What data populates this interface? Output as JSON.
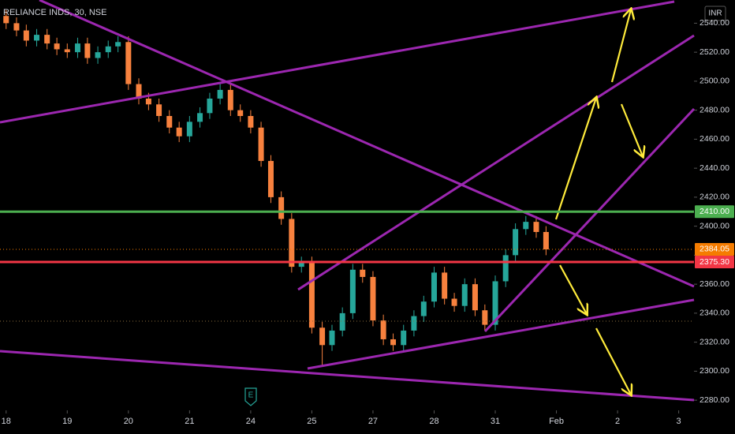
{
  "chart_data": {
    "type": "candlestick",
    "title": "RELIANCE INDS, 30, NSE",
    "currency": "INR",
    "event_marker": "E",
    "up_color": "#26a69a",
    "down_color": "#f7813e",
    "x": [
      0,
      0.17,
      0.33,
      0.5,
      0.67,
      0.83,
      1,
      1.17,
      1.33,
      1.5,
      1.67,
      1.83,
      2,
      2.17,
      2.33,
      2.5,
      2.67,
      2.83,
      3,
      3.17,
      3.33,
      3.5,
      3.67,
      3.83,
      4,
      4.17,
      4.33,
      4.5,
      4.67,
      4.83,
      5,
      5.17,
      5.33,
      5.5,
      5.67,
      5.83,
      6,
      6.17,
      6.33,
      6.5,
      6.67,
      6.83,
      7,
      7.17,
      7.33,
      7.5,
      7.67,
      7.83,
      8,
      8.17,
      8.33,
      8.5,
      8.67,
      8.83
    ],
    "open": [
      2545,
      2540,
      2535,
      2528,
      2532,
      2526,
      2522,
      2520,
      2526,
      2516,
      2520,
      2524,
      2527,
      2498,
      2488,
      2484,
      2476,
      2468,
      2462,
      2472,
      2478,
      2488,
      2494,
      2480,
      2476,
      2468,
      2445,
      2420,
      2405,
      2372,
      2375,
      2330,
      2318,
      2328,
      2340,
      2370,
      2365,
      2335,
      2322,
      2318,
      2328,
      2338,
      2348,
      2368,
      2350,
      2345,
      2360,
      2342,
      2332,
      2362,
      2380,
      2398,
      2403,
      2396
    ],
    "high": [
      2549,
      2544,
      2539,
      2536,
      2536,
      2530,
      2526,
      2530,
      2530,
      2524,
      2528,
      2531,
      2531,
      2502,
      2492,
      2488,
      2480,
      2472,
      2476,
      2482,
      2492,
      2498,
      2498,
      2484,
      2480,
      2472,
      2449,
      2424,
      2409,
      2379,
      2379,
      2334,
      2332,
      2344,
      2374,
      2374,
      2369,
      2339,
      2326,
      2332,
      2342,
      2352,
      2372,
      2372,
      2354,
      2364,
      2364,
      2346,
      2366,
      2384,
      2402,
      2407,
      2407,
      2400
    ],
    "low": [
      2536,
      2531,
      2524,
      2524,
      2522,
      2518,
      2516,
      2516,
      2512,
      2512,
      2516,
      2520,
      2494,
      2484,
      2480,
      2472,
      2464,
      2458,
      2458,
      2468,
      2474,
      2484,
      2476,
      2472,
      2464,
      2441,
      2416,
      2401,
      2368,
      2368,
      2326,
      2304,
      2314,
      2324,
      2336,
      2361,
      2331,
      2318,
      2314,
      2314,
      2324,
      2334,
      2344,
      2346,
      2341,
      2341,
      2338,
      2328,
      2328,
      2358,
      2376,
      2394,
      2392,
      2380
    ],
    "close": [
      2540,
      2535,
      2528,
      2532,
      2526,
      2522,
      2520,
      2526,
      2516,
      2520,
      2524,
      2527,
      2498,
      2488,
      2484,
      2476,
      2468,
      2462,
      2472,
      2478,
      2488,
      2494,
      2480,
      2476,
      2468,
      2445,
      2420,
      2405,
      2372,
      2375,
      2330,
      2318,
      2328,
      2340,
      2370,
      2365,
      2335,
      2322,
      2318,
      2328,
      2338,
      2348,
      2368,
      2350,
      2345,
      2360,
      2342,
      2332,
      2362,
      2380,
      2398,
      2403,
      2396,
      2384
    ],
    "xlim": [
      -0.1,
      11.25
    ],
    "xticks": [
      {
        "value": 0,
        "label": "18"
      },
      {
        "value": 1,
        "label": "19"
      },
      {
        "value": 2,
        "label": "20"
      },
      {
        "value": 3,
        "label": "21"
      },
      {
        "value": 4,
        "label": "24"
      },
      {
        "value": 5,
        "label": "25"
      },
      {
        "value": 6,
        "label": "27"
      },
      {
        "value": 7,
        "label": "28"
      },
      {
        "value": 8,
        "label": "31"
      },
      {
        "value": 9,
        "label": "Feb"
      },
      {
        "value": 10,
        "label": "2"
      },
      {
        "value": 11,
        "label": "3"
      }
    ],
    "ylim": [
      2273,
      2556
    ],
    "yticks": [
      {
        "value": 2280,
        "label": "2280.00"
      },
      {
        "value": 2300,
        "label": "2300.00"
      },
      {
        "value": 2320,
        "label": "2320.00"
      },
      {
        "value": 2340,
        "label": "2340.00"
      },
      {
        "value": 2360,
        "label": "2360.00"
      },
      {
        "value": 2380,
        "label": "2380.00"
      },
      {
        "value": 2400,
        "label": "2400.00"
      },
      {
        "value": 2420,
        "label": "2420.00"
      },
      {
        "value": 2440,
        "label": "2440.00"
      },
      {
        "value": 2460,
        "label": "2460.00"
      },
      {
        "value": 2480,
        "label": "2480.00"
      },
      {
        "value": 2500,
        "label": "2500.00"
      },
      {
        "value": 2520,
        "label": "2520.00"
      },
      {
        "value": 2540,
        "label": "2540.00"
      }
    ],
    "levels": [
      {
        "value": 2410,
        "label": "2410.00",
        "color": "#4caf50",
        "dotted": false
      },
      {
        "value": 2384.05,
        "label": "2384.05",
        "color": "#f57c00",
        "dotted": true
      },
      {
        "value": 2375.3,
        "label": "2375.30",
        "color": "#f23645",
        "dotted": false
      }
    ]
  }
}
